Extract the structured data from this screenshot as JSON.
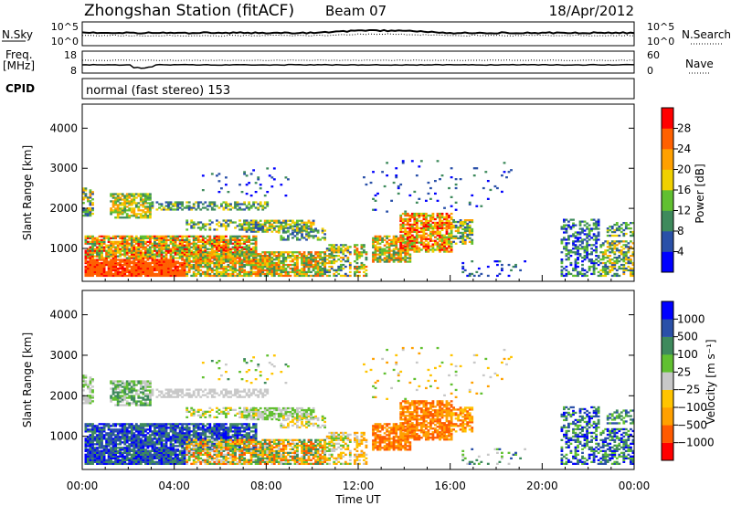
{
  "header": {
    "title": "Zhongshan Station (fitACF)",
    "beam": "Beam 07",
    "date": "18/Apr/2012"
  },
  "noise_panel": {
    "left_label": "N.Sky",
    "left_ticks": [
      "10^5",
      "10^0"
    ],
    "right_ticks": [
      "10^5",
      "10^0"
    ],
    "right_label": "N.Search"
  },
  "freq_panel": {
    "left_label_1": "Freq.",
    "left_label_2": "[MHz]",
    "left_ticks": [
      "18",
      "8"
    ],
    "right_ticks": [
      "60",
      "0"
    ],
    "right_label": "Nave"
  },
  "cpid_panel": {
    "label": "CPID",
    "text": "normal (fast stereo) 153"
  },
  "colors": {
    "power": [
      "#0000ff",
      "#2a50a8",
      "#3e8a5c",
      "#61c030",
      "#f0d000",
      "#ffa000",
      "#ff6000",
      "#ff0000"
    ],
    "velocity": [
      "#ff0000",
      "#ff5a00",
      "#ffa000",
      "#ffc400",
      "#c8c8c8",
      "#61c030",
      "#3e8a5c",
      "#2a50a8",
      "#0000ff"
    ]
  },
  "chart_data": [
    {
      "type": "heatmap",
      "name": "power",
      "ylabel": "Slant Range [km]",
      "yticks": [
        "1000",
        "2000",
        "3000",
        "4000"
      ],
      "xticks": [
        "00:00",
        "04:00",
        "08:00",
        "12:00",
        "16:00",
        "20:00",
        "00:00"
      ],
      "xlim": [
        0,
        24
      ],
      "ylim": [
        180,
        4600
      ],
      "colorbar_label": "Power [dB]",
      "colorbar_ticks": [
        "4",
        "8",
        "12",
        "16",
        "20",
        "24",
        "28"
      ],
      "colorbar_range": [
        0,
        32
      ]
    },
    {
      "type": "heatmap",
      "name": "velocity",
      "ylabel": "Slant Range [km]",
      "yticks": [
        "1000",
        "2000",
        "3000",
        "4000"
      ],
      "xticks": [
        "00:00",
        "04:00",
        "08:00",
        "12:00",
        "16:00",
        "20:00",
        "00:00"
      ],
      "xlim": [
        0,
        24
      ],
      "ylim": [
        180,
        4600
      ],
      "xlabel": "Time UT",
      "colorbar_label": "Velocity [m s⁻¹]",
      "colorbar_ticks": [
        "1000",
        "500",
        "100",
        "25",
        "−25",
        "−100",
        "−500",
        "−1000"
      ]
    }
  ]
}
